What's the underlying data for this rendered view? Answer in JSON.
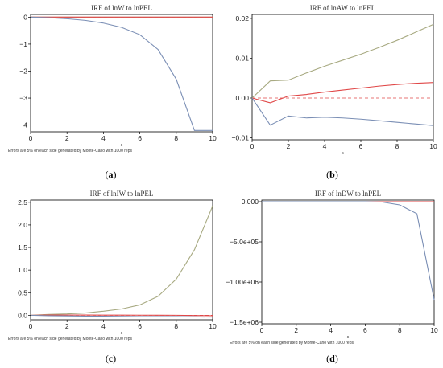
{
  "captions": [
    "a",
    "b",
    "c",
    "d"
  ],
  "chart_data": [
    {
      "type": "line",
      "title": "IRF of lnW to lnPEL",
      "xlabel": "s",
      "note": "Errors are 5% on each side generated by Monte-Carlo with 1000 reps",
      "x": [
        0,
        1,
        2,
        3,
        4,
        5,
        6,
        7,
        8,
        9,
        10
      ],
      "xticks": [
        0,
        2,
        4,
        6,
        8,
        10
      ],
      "xtick_labels": [
        "0",
        "2",
        "4",
        "6",
        "8",
        "10"
      ],
      "yticks": [
        0,
        -1,
        -2,
        -3,
        -4
      ],
      "ytick_labels": [
        "0",
        "−1",
        "−2",
        "−3",
        "−4"
      ],
      "ylim": [
        -4.25,
        0.1
      ],
      "zero_line": true,
      "series": [
        {
          "role": "upper",
          "color": "#a8aa82",
          "values": [
            0,
            0,
            0,
            0,
            0,
            0,
            0,
            0,
            0,
            0,
            0
          ]
        },
        {
          "role": "irf",
          "color": "#e04848",
          "values": [
            0,
            0,
            0,
            0,
            0,
            0,
            0,
            0,
            0,
            0,
            0
          ]
        },
        {
          "role": "lower",
          "color": "#7b8fb5",
          "values": [
            0,
            -0.02,
            -0.06,
            -0.12,
            -0.22,
            -0.38,
            -0.65,
            -1.2,
            -2.3,
            -4.2,
            -4.2
          ]
        }
      ]
    },
    {
      "type": "line",
      "title": "IRF of lnAW to lnPEL",
      "xlabel": "s",
      "note": "",
      "x": [
        0,
        1,
        2,
        3,
        4,
        5,
        6,
        7,
        8,
        9,
        10
      ],
      "xticks": [
        0,
        2,
        4,
        6,
        8,
        10
      ],
      "xtick_labels": [
        "0",
        "2",
        "4",
        "6",
        "8",
        "10"
      ],
      "yticks": [
        0.02,
        0.01,
        0.0,
        -0.01
      ],
      "ytick_labels": [
        "0.02",
        "0.01",
        "0.00",
        "−0.01"
      ],
      "ylim": [
        -0.0105,
        0.021
      ],
      "zero_line": true,
      "series": [
        {
          "role": "upper",
          "color": "#a8aa82",
          "values": [
            0,
            0.0043,
            0.0045,
            0.0063,
            0.008,
            0.0095,
            0.011,
            0.0127,
            0.0145,
            0.0165,
            0.0185
          ]
        },
        {
          "role": "irf",
          "color": "#e04848",
          "values": [
            0,
            -0.0012,
            0.0005,
            0.0009,
            0.0015,
            0.002,
            0.0025,
            0.003,
            0.0034,
            0.0037,
            0.0039
          ]
        },
        {
          "role": "lower",
          "color": "#7b8fb5",
          "values": [
            0,
            -0.0068,
            -0.0045,
            -0.005,
            -0.0048,
            -0.005,
            -0.0053,
            -0.0057,
            -0.0061,
            -0.0065,
            -0.0069
          ]
        }
      ]
    },
    {
      "type": "line",
      "title": "IRF of lnIW to lnPEL",
      "xlabel": "s",
      "note": "Errors are 5% on each side generated by Monte-Carlo with 1000 reps",
      "x": [
        0,
        1,
        2,
        3,
        4,
        5,
        6,
        7,
        8,
        9,
        10
      ],
      "xticks": [
        0,
        2,
        4,
        6,
        8,
        10
      ],
      "xtick_labels": [
        "0",
        "2",
        "4",
        "6",
        "8",
        "10"
      ],
      "yticks": [
        2.5,
        2.0,
        1.5,
        1.0,
        0.5,
        0.0
      ],
      "ytick_labels": [
        "2.5",
        "2.0",
        "1.5",
        "1.0",
        "0.5",
        "0.0"
      ],
      "ylim": [
        -0.1,
        2.55
      ],
      "zero_line": true,
      "series": [
        {
          "role": "upper",
          "color": "#a8aa82",
          "values": [
            0,
            0.02,
            0.03,
            0.05,
            0.09,
            0.14,
            0.23,
            0.42,
            0.8,
            1.45,
            2.42
          ]
        },
        {
          "role": "irf",
          "color": "#e04848",
          "values": [
            0,
            0.005,
            0.006,
            0.005,
            0.004,
            0.003,
            0.002,
            0.001,
            0.0,
            -0.005,
            -0.01
          ]
        },
        {
          "role": "lower",
          "color": "#7b8fb5",
          "values": [
            0,
            -0.01,
            -0.015,
            -0.02,
            -0.02,
            -0.025,
            -0.03,
            -0.03,
            -0.03,
            -0.035,
            -0.04
          ]
        }
      ]
    },
    {
      "type": "line",
      "title": "IRF of lnDW to lnPEL",
      "xlabel": "s",
      "note": "Errors are 5% on each side generated by Monte-Carlo with 1000 reps",
      "x": [
        0,
        1,
        2,
        3,
        4,
        5,
        6,
        7,
        8,
        9,
        10
      ],
      "xticks": [
        0,
        2,
        4,
        6,
        8,
        10
      ],
      "xtick_labels": [
        "0",
        "2",
        "4",
        "6",
        "8",
        "10"
      ],
      "yticks": [
        0,
        -500000,
        -1000000,
        -1500000
      ],
      "ytick_labels": [
        "0.000",
        "−5.0e+05",
        "−1.00e+06",
        "−1.5e+06"
      ],
      "ylim": [
        -1520000,
        20000
      ],
      "zero_line": true,
      "series": [
        {
          "role": "upper",
          "color": "#a8aa82",
          "values": [
            0,
            0,
            0,
            0,
            0,
            0,
            0,
            0,
            0,
            0,
            0
          ]
        },
        {
          "role": "irf",
          "color": "#e04848",
          "values": [
            0,
            0,
            0,
            0,
            0,
            0,
            0,
            0,
            0,
            0,
            0
          ]
        },
        {
          "role": "lower",
          "color": "#7b8fb5",
          "values": [
            0,
            0,
            0,
            0,
            0,
            0,
            0,
            -5000,
            -40000,
            -150000,
            -1220000
          ]
        }
      ]
    }
  ]
}
